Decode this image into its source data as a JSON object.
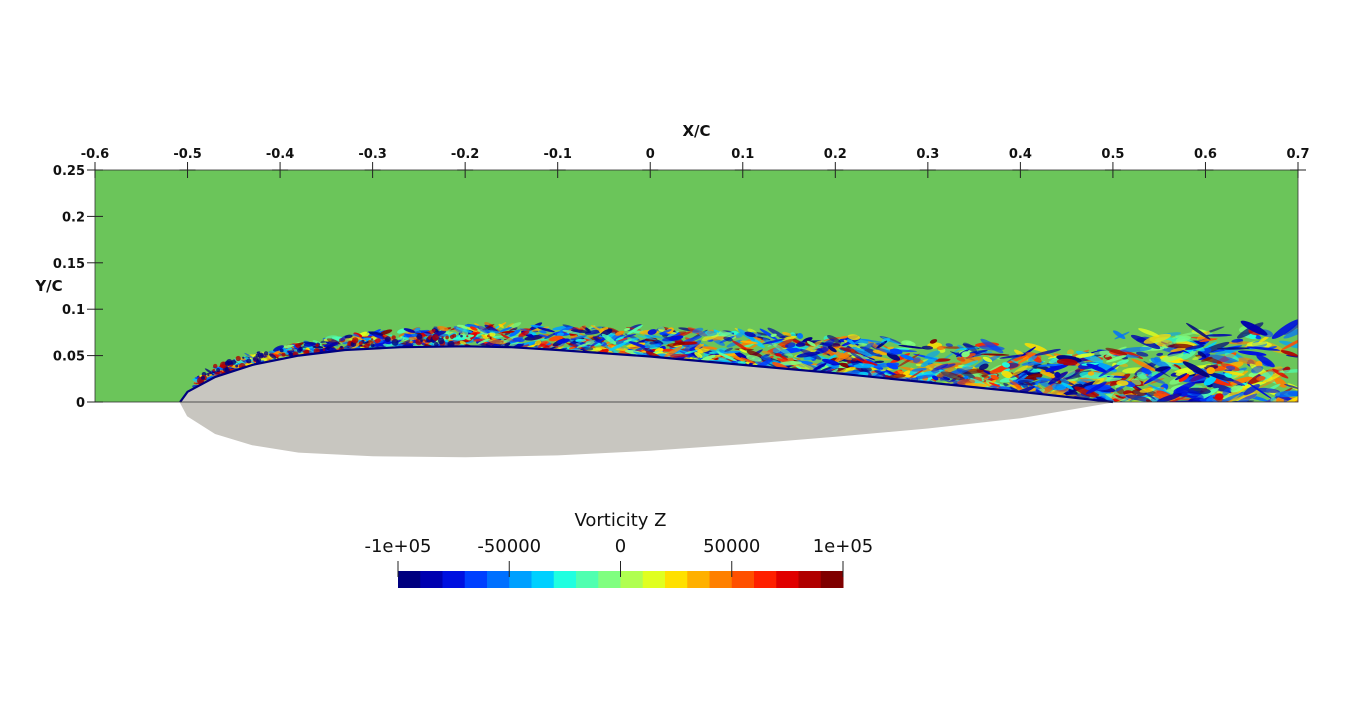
{
  "chart_data": {
    "type": "heatmap",
    "xlabel": "X/C",
    "ylabel": "Y/C",
    "xlim": [
      -0.6,
      0.7
    ],
    "ylim": [
      0,
      0.25
    ],
    "x_ticks": [
      -0.6,
      -0.5,
      -0.4,
      -0.3,
      -0.2,
      -0.1,
      0,
      0.1,
      0.2,
      0.3,
      0.4,
      0.5,
      0.6,
      0.7
    ],
    "x_tick_labels": [
      "-0.6",
      "-0.5",
      "-0.4",
      "-0.3",
      "-0.2",
      "-0.1",
      "0",
      "0.1",
      "0.2",
      "0.3",
      "0.4",
      "0.5",
      "0.6",
      "0.7"
    ],
    "y_ticks": [
      0,
      0.05,
      0.1,
      0.15,
      0.2,
      0.25
    ],
    "y_tick_labels": [
      "0",
      "0.05",
      "0.1",
      "0.15",
      "0.2",
      "0.25"
    ],
    "field_name": "Vorticity Z",
    "color_range": [
      -100000,
      100000
    ],
    "colorbar": {
      "title": "Vorticity Z",
      "ticks": [
        -100000,
        -50000,
        0,
        50000,
        100000
      ],
      "tick_labels": [
        "-1e+05",
        "-50000",
        "0",
        "50000",
        "1e+05"
      ],
      "colormap": [
        "#00007f",
        "#0000b0",
        "#0010e0",
        "#0040ff",
        "#0070ff",
        "#00a0ff",
        "#00d0ff",
        "#20ffe0",
        "#50ffb0",
        "#80ff80",
        "#b0ff50",
        "#e0ff20",
        "#ffe000",
        "#ffb000",
        "#ff8000",
        "#ff5000",
        "#ff2000",
        "#e00000",
        "#b00000",
        "#7f0000"
      ]
    },
    "background_color": "#6bc55a",
    "airfoil_color": "#c8c6c0",
    "airfoil": {
      "leading_edge_x": -0.508,
      "trailing_edge_x": 0.5,
      "upper_surface": [
        [
          -0.508,
          0
        ],
        [
          -0.5,
          0.011
        ],
        [
          -0.47,
          0.027
        ],
        [
          -0.43,
          0.04
        ],
        [
          -0.38,
          0.05
        ],
        [
          -0.33,
          0.056
        ],
        [
          -0.27,
          0.059
        ],
        [
          -0.2,
          0.06
        ],
        [
          -0.15,
          0.059
        ],
        [
          -0.1,
          0.056
        ],
        [
          0,
          0.049
        ],
        [
          0.1,
          0.04
        ],
        [
          0.2,
          0.031
        ],
        [
          0.3,
          0.021
        ],
        [
          0.4,
          0.011
        ],
        [
          0.5,
          0
        ]
      ],
      "lower_surface": [
        [
          -0.508,
          0
        ],
        [
          -0.5,
          -0.015
        ],
        [
          -0.47,
          -0.034
        ],
        [
          -0.43,
          -0.046
        ],
        [
          -0.38,
          -0.054
        ],
        [
          -0.3,
          -0.058
        ],
        [
          -0.2,
          -0.059
        ],
        [
          -0.1,
          -0.057
        ],
        [
          0,
          -0.052
        ],
        [
          0.1,
          -0.045
        ],
        [
          0.2,
          -0.037
        ],
        [
          0.3,
          -0.028
        ],
        [
          0.4,
          -0.017
        ],
        [
          0.5,
          0
        ]
      ]
    }
  }
}
